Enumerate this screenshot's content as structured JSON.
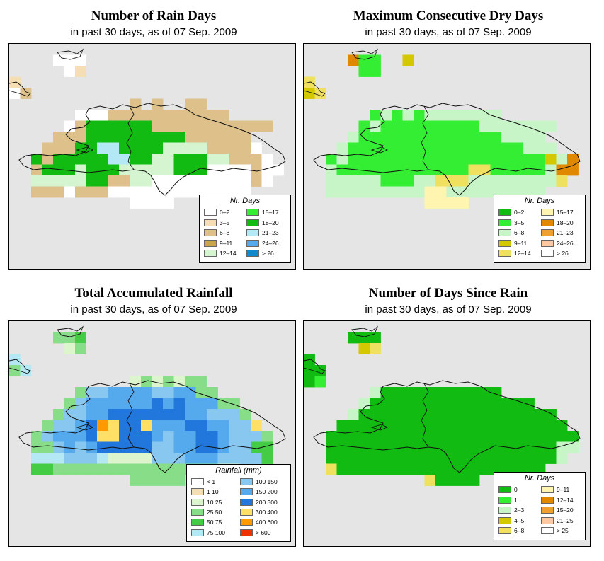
{
  "colors": {
    "map_bg": "#e5e5e5",
    "coast": "#111111",
    "legend_bg": "#ffffff"
  },
  "panels": [
    {
      "id": "rain-days",
      "title": "Number of Rain Days",
      "subtitle": "in past 30 days, as of  07 Sep. 2009",
      "legend_title": "Nr. Days",
      "legend": [
        {
          "label": "0–2",
          "color": "#ffffff"
        },
        {
          "label": "3–5",
          "color": "#f5deb3"
        },
        {
          "label": "6–8",
          "color": "#ddc08a"
        },
        {
          "label": "9–11",
          "color": "#c9a54a"
        },
        {
          "label": "12–14",
          "color": "#d4f5d0"
        },
        {
          "label": "15–17",
          "color": "#33ee33"
        },
        {
          "label": "18–20",
          "color": "#11bb11"
        },
        {
          "label": "21–23",
          "color": "#b5e8f5"
        },
        {
          "label": "24–26",
          "color": "#55aaee"
        },
        {
          "label": "> 26",
          "color": "#1188cc"
        }
      ],
      "grid": [
        "..........................",
        "....AAA...................",
        ".....AB...................",
        "B.........................",
        "AC........................",
        "...........C.C..CC........",
        "......AAACCCCCCCCCCC......",
        ".....ACGGGGGGCCCCCCCCCCC..",
        "....CCCGGGGGGGGGCCCCCC....",
        "...CCCGGHHGGGGEEEECCCCA...",
        "..GCGGGGGHHGGEEGGGEECCCA..",
        "..CGGGEGGGEEEEEGGGAAAACAA.",
        "..EEEEEGGCCEEAAAAAAAAACA..",
        "..CCCACCCAAAAAAAAAAAAA....",
        "...........AAAA...........",
        "..........................",
        "..........................",
        ".........................."
      ]
    },
    {
      "id": "dry-days",
      "title": "Maximum Consecutive Dry Days",
      "subtitle": "in past 30 days, as of  07 Sep. 2009",
      "legend_title": "Nr. Days",
      "legend": [
        {
          "label": "0–2",
          "color": "#11bb11"
        },
        {
          "label": "3–5",
          "color": "#33ee33"
        },
        {
          "label": "6–8",
          "color": "#c8f5c8"
        },
        {
          "label": "9–11",
          "color": "#d4c800"
        },
        {
          "label": "12–14",
          "color": "#f0e060"
        },
        {
          "label": "15–17",
          "color": "#fff5b0"
        },
        {
          "label": "18–20",
          "color": "#e08800"
        },
        {
          "label": "21–23",
          "color": "#f0a030"
        },
        {
          "label": "24–26",
          "color": "#ffc8a0"
        },
        {
          "label": "> 26",
          "color": "#ffffff"
        }
      ],
      "grid": [
        "..............................",
        "....GBB..D....................",
        ".....BB.......................",
        "E.............................",
        "DE............................",
        "..........................",
        "......BCBCBCCCCCCC........",
        ".....BCBBBBBBBBBCCCCCCC...",
        "....CBBBBBBBBBBBBBCCCC....",
        "...CBBBBBBBBBBBBBBBBCCC...",
        "..BCBBBBBBBBBBBBBBBBBBDCG.",
        "..CBBBBBBBBBBBBEEBBBBBCGG.",
        "..CCCCCBBBCCEEECCCCCCCCE..",
        "..CCCCCCCCCFFCCCCCCCCC....",
        "...........FFFF...........",
        "..........................",
        "..........................",
        ".........................."
      ]
    },
    {
      "id": "rainfall",
      "title": "Total Accumulated Rainfall",
      "subtitle": "in past 30 days, as of  07 Sep. 2009",
      "legend_title": "Rainfall (mm)",
      "legend": [
        {
          "label": "< 1",
          "color": "#ffffff"
        },
        {
          "label": "1    10",
          "color": "#f5deb3"
        },
        {
          "label": "10    25",
          "color": "#ddf5cc"
        },
        {
          "label": "25    50",
          "color": "#88dd88"
        },
        {
          "label": "50    75",
          "color": "#44cc44"
        },
        {
          "label": "75    100",
          "color": "#b5e8f5"
        },
        {
          "label": "100   150",
          "color": "#88c8f0"
        },
        {
          "label": "150   200",
          "color": "#55aaee"
        },
        {
          "label": "200   300",
          "color": "#2277dd"
        },
        {
          "label": "300   400",
          "color": "#ffe066"
        },
        {
          "label": "400   600",
          "color": "#ff9900"
        },
        {
          "label": "> 600",
          "color": "#ee3300"
        }
      ],
      "grid": [
        "..........................",
        "....DDE...................",
        ".....CD...................",
        "F.........................",
        "DF........................",
        "...........CDCDCDD........",
        "......DGGHHHHGGHHDD.......",
        ".....DGHHHHHHIHIHHHDD.....",
        "....DGGHHIIIIIIIHHGGGD....",
        "...DGGHIKJIIJHHHIIHHGGJ...",
        "..DGHHHIJJIIIHGHHIIHGGGD..",
        "..DDGHGHIIIIIGGHHIIHGGEE..",
        "..FFFGGGFCCCCGGGHHHGGGGE..",
        "..EEDDDDDDDDDDDDDDDCC.....",
        "...........DDDDD..........",
        "..........................",
        "..........................",
        ".........................."
      ]
    },
    {
      "id": "days-since",
      "title": "Number of Days Since Rain",
      "subtitle": "in past 30 days, as of  07 Sep. 2009",
      "legend_title": "Nr. Days",
      "legend": [
        {
          "label": "0",
          "color": "#11bb11"
        },
        {
          "label": "1",
          "color": "#33ee33"
        },
        {
          "label": "2–3",
          "color": "#c8f5c8"
        },
        {
          "label": "4–5",
          "color": "#d4c800"
        },
        {
          "label": "6–8",
          "color": "#f0e060"
        },
        {
          "label": "9–11",
          "color": "#fff5b0"
        },
        {
          "label": "12–14",
          "color": "#e08800"
        },
        {
          "label": "15–20",
          "color": "#f0a030"
        },
        {
          "label": "21–25",
          "color": "#ffc8a0"
        },
        {
          "label": "> 25",
          "color": "#ffffff"
        }
      ],
      "grid": [
        "..........................",
        "....AAA...................",
        ".....DE...................",
        "A.........................",
        "AA........................",
        "AB........................",
        "......CAAAAAAAAAAA........",
        ".....CAAAAAAAAAAAAAAA.....",
        "....CAAAAAAAAAAAAAAAAAA...",
        "...AAAAAAAAAAAAAAAAAAAAA..",
        "..AAAAAAAAAAAAAAAAAAAAAAA.",
        "..AAAAAAAAAAAAAAAAAAAAACC.",
        "..AAAAAAAAAAAAAAAAAAAAAC..",
        "..EAAAAAAAAAAAAAAAAAAA....",
        "...........EAAAA..........",
        "..........................",
        "..........................",
        ".........................."
      ]
    }
  ]
}
